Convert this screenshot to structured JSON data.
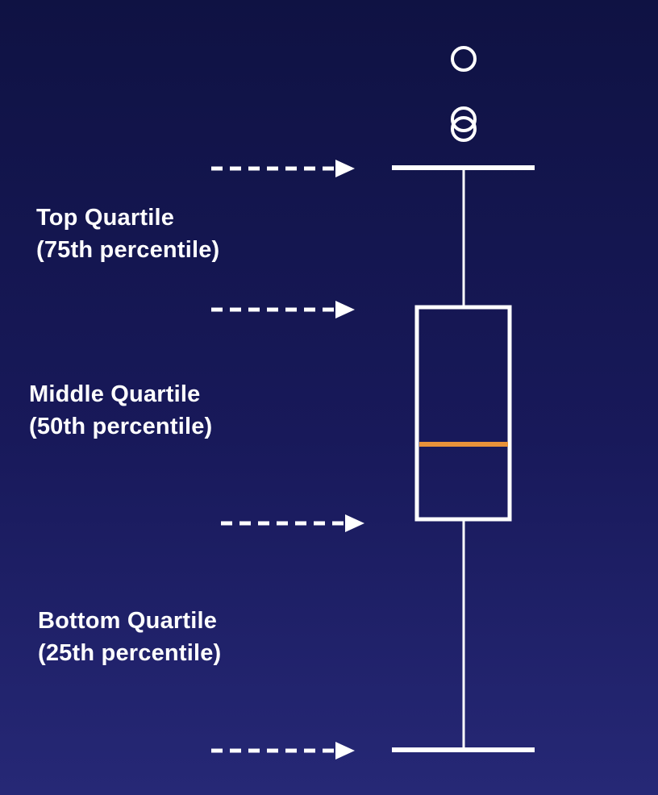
{
  "colors": {
    "background_top": "#0f1243",
    "background_bottom": "#262876",
    "stroke": "#ffffff",
    "median": "#e8923a"
  },
  "labels": {
    "top": {
      "line1": "Top Quartile",
      "line2": "(75th percentile)"
    },
    "middle": {
      "line1": "Middle Quartile",
      "line2": "(50th percentile)"
    },
    "bottom": {
      "line1": "Bottom Quartile",
      "line2": "(25th percentile)"
    }
  },
  "markers": {
    "outlier_count": 3,
    "arrow_count": 4
  }
}
